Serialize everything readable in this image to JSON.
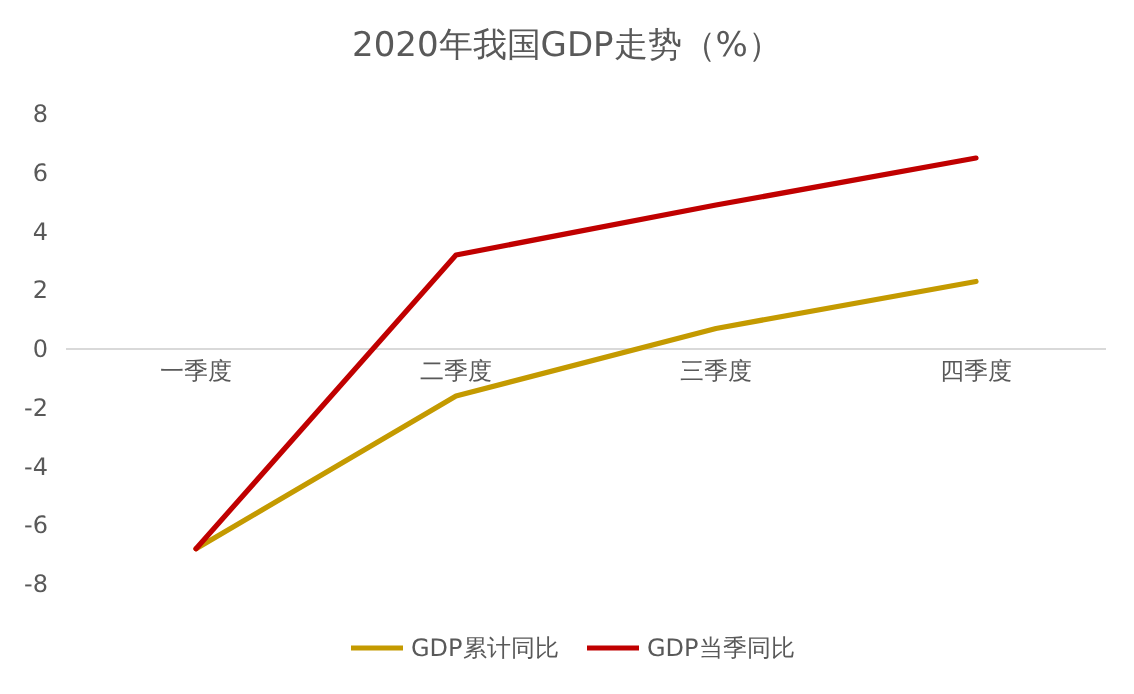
{
  "chart_data": {
    "type": "line",
    "title": "2020年我国GDP走势（%）",
    "categories": [
      "一季度",
      "二季度",
      "三季度",
      "四季度"
    ],
    "series": [
      {
        "name": "GDP累计同比",
        "color": "#c49a00",
        "values": [
          -6.8,
          -1.6,
          0.7,
          2.3
        ]
      },
      {
        "name": "GDP当季同比",
        "color": "#c00000",
        "values": [
          -6.8,
          3.2,
          4.9,
          6.5
        ]
      }
    ],
    "ylim": [
      -8,
      8
    ],
    "yticks": [
      -8,
      -6,
      -4,
      -2,
      0,
      2,
      4,
      6,
      8
    ],
    "grid": false,
    "legend": "bottom",
    "marker": "none",
    "line_style": "solid"
  }
}
